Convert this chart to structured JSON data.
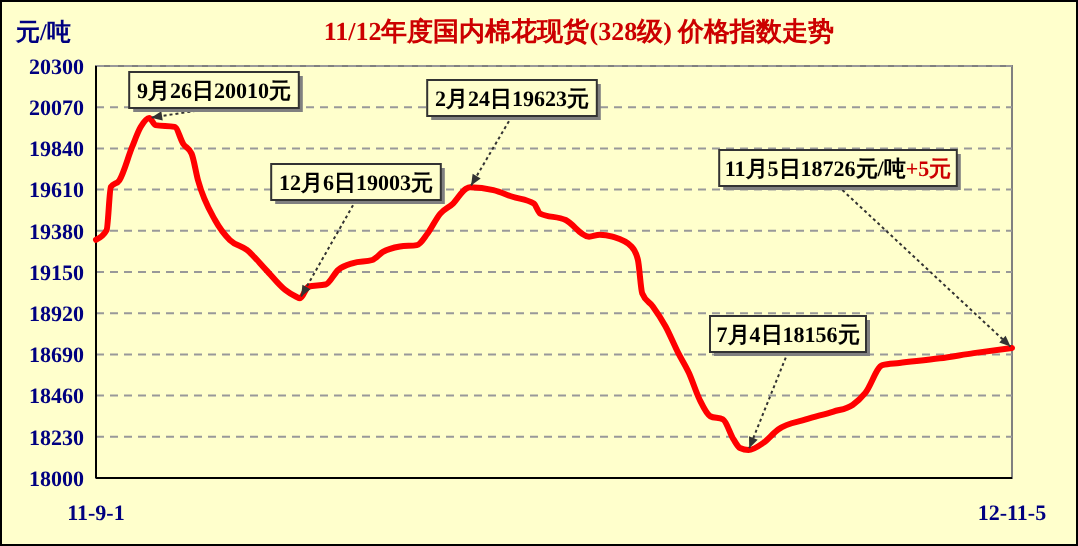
{
  "chart_data": {
    "type": "line",
    "title": "11/12年度国内棉花现货(328级) 价格指数走势",
    "ylabel": "元/吨",
    "x": [
      "2011-09-01",
      "2011-09-06",
      "2011-09-08",
      "2011-09-12",
      "2011-09-18",
      "2011-09-22",
      "2011-09-26",
      "2011-09-29",
      "2011-10-08",
      "2011-10-12",
      "2011-10-16",
      "2011-10-19",
      "2011-10-27",
      "2011-11-03",
      "2011-11-11",
      "2011-11-20",
      "2011-11-29",
      "2011-12-04",
      "2011-12-06",
      "2011-12-10",
      "2011-12-18",
      "2011-12-24",
      "2011-12-31",
      "2012-01-09",
      "2012-01-14",
      "2012-01-22",
      "2012-01-30",
      "2012-02-04",
      "2012-02-10",
      "2012-02-16",
      "2012-02-22",
      "2012-02-24",
      "2012-03-06",
      "2012-03-15",
      "2012-03-25",
      "2012-03-28",
      "2012-04-09",
      "2012-04-20",
      "2012-04-25",
      "2012-05-01",
      "2012-05-10",
      "2012-05-13",
      "2012-05-15",
      "2012-05-20",
      "2012-05-26",
      "2012-06-01",
      "2012-06-06",
      "2012-06-11",
      "2012-06-16",
      "2012-06-22",
      "2012-06-27",
      "2012-06-30",
      "2012-07-04",
      "2012-07-11",
      "2012-07-18",
      "2012-07-31",
      "2012-08-13",
      "2012-08-22",
      "2012-08-28",
      "2012-09-05",
      "2012-09-13",
      "2012-10-02",
      "2012-10-18",
      "2012-11-05"
    ],
    "series": [
      {
        "color": "#ff0000",
        "values": [
          19330,
          19384,
          19625,
          19662,
          19848,
          19959,
          20010,
          19970,
          19960,
          19866,
          19810,
          19662,
          19440,
          19328,
          19273,
          19162,
          19050,
          19013,
          19003,
          19069,
          19080,
          19162,
          19200,
          19217,
          19262,
          19292,
          19300,
          19365,
          19476,
          19532,
          19614,
          19623,
          19607,
          19570,
          19532,
          19476,
          19440,
          19347,
          19358,
          19347,
          19292,
          19217,
          19031,
          18958,
          18846,
          18697,
          18586,
          18438,
          18345,
          18327,
          18215,
          18167,
          18156,
          18196,
          18271,
          18327,
          18371,
          18408,
          18475,
          18630,
          18642,
          18668,
          18697,
          18726
        ]
      }
    ],
    "xlim": [
      "2011-09-01",
      "2012-11-05"
    ],
    "xticks": [
      {
        "value": "2011-09-01",
        "label": "11-9-1"
      },
      {
        "value": "2012-11-05",
        "label": "12-11-5"
      }
    ],
    "ylim": [
      18000,
      20300
    ],
    "yticks": [
      18000,
      18230,
      18460,
      18690,
      18920,
      19150,
      19380,
      19610,
      19840,
      20070,
      20300
    ],
    "annotations": [
      {
        "text": "9月26日20010元",
        "x": "2011-09-26",
        "y": 20010
      },
      {
        "text": "12月6日19003元",
        "x": "2011-12-06",
        "y": 19003
      },
      {
        "text": "2月24日19623元",
        "x": "2012-02-24",
        "y": 19623
      },
      {
        "text": "7月4日18156元",
        "x": "2012-07-04",
        "y": 18156
      },
      {
        "text": "11月5日18726元/吨+5元",
        "x": "2012-11-05",
        "y": 18726
      }
    ],
    "grid": "y",
    "marker": "none",
    "line_style": "solid"
  }
}
